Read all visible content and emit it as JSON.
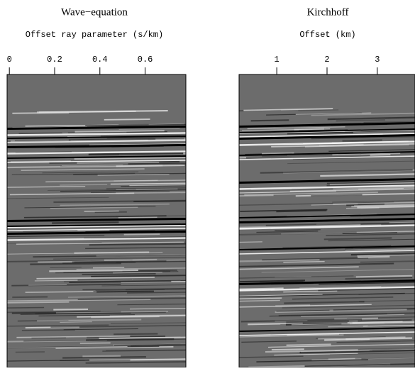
{
  "chart_data": [
    {
      "type": "image",
      "title": "Wave−equation",
      "xlabel": "Offset ray parameter (s/km)",
      "xlim": [
        -0.01,
        0.78
      ],
      "xticks": [
        0,
        0.2,
        0.4,
        0.6
      ]
    },
    {
      "type": "image",
      "title": "Kirchhoff",
      "xlabel": "Offset (km)",
      "xlim": [
        0.25,
        3.75
      ],
      "xticks": [
        1,
        2,
        3
      ]
    }
  ]
}
